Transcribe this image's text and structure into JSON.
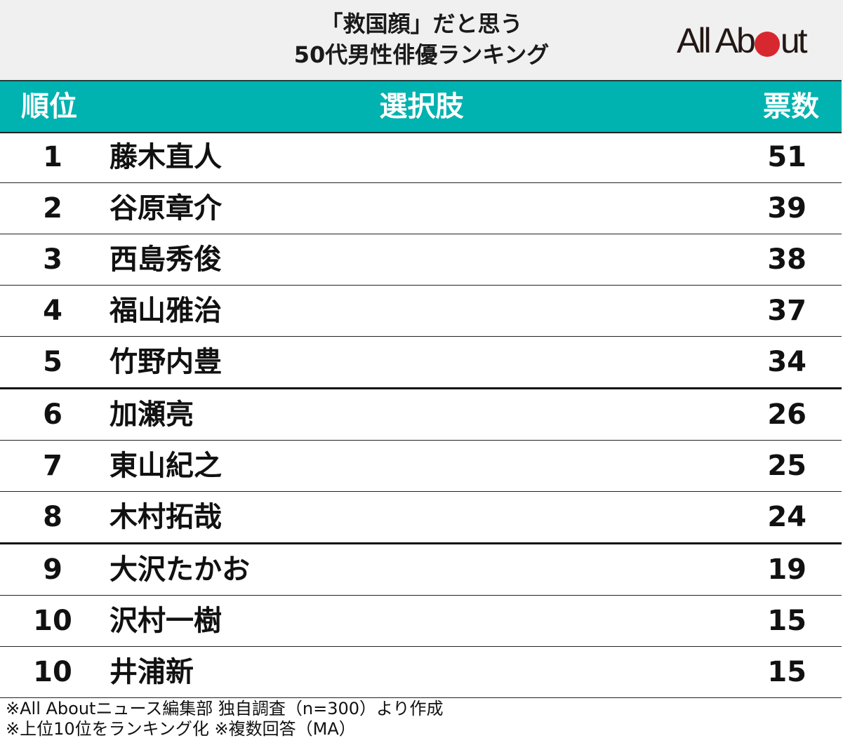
{
  "header": {
    "title_line1": "「救国顔」だと思う",
    "title_line2": "50代男性俳優ランキング",
    "logo": {
      "text_left": "All Ab",
      "text_right": "ut",
      "dot_color": "#d7282f"
    }
  },
  "table": {
    "header_color": "#00b2b0",
    "columns": {
      "rank": "順位",
      "choice": "選択肢",
      "votes": "票数"
    },
    "rows": [
      {
        "rank": "1",
        "name": "藤木直人",
        "votes": "51"
      },
      {
        "rank": "2",
        "name": "谷原章介",
        "votes": "39"
      },
      {
        "rank": "3",
        "name": "西島秀俊",
        "votes": "38"
      },
      {
        "rank": "4",
        "name": "福山雅治",
        "votes": "37"
      },
      {
        "rank": "5",
        "name": "竹野内豊",
        "votes": "34"
      },
      {
        "rank": "6",
        "name": "加瀬亮",
        "votes": "26"
      },
      {
        "rank": "7",
        "name": "東山紀之",
        "votes": "25"
      },
      {
        "rank": "8",
        "name": "木村拓哉",
        "votes": "24"
      },
      {
        "rank": "9",
        "name": "大沢たかお",
        "votes": "19"
      },
      {
        "rank": "10",
        "name": "沢村一樹",
        "votes": "15"
      },
      {
        "rank": "10",
        "name": "井浦新",
        "votes": "15"
      }
    ]
  },
  "footer": {
    "note1": "※All Aboutニュース編集部 独自調査（n=300）より作成",
    "note2": "※上位10位をランキング化 ※複数回答（MA）"
  },
  "chart_data": {
    "type": "table",
    "title": "「救国顔」だと思う 50代男性俳優ランキング",
    "columns": [
      "順位",
      "選択肢",
      "票数"
    ],
    "categories": [
      "藤木直人",
      "谷原章介",
      "西島秀俊",
      "福山雅治",
      "竹野内豊",
      "加瀬亮",
      "東山紀之",
      "木村拓哉",
      "大沢たかお",
      "沢村一樹",
      "井浦新"
    ],
    "ranks": [
      1,
      2,
      3,
      4,
      5,
      6,
      7,
      8,
      9,
      10,
      10
    ],
    "values": [
      51,
      39,
      38,
      37,
      34,
      26,
      25,
      24,
      19,
      15,
      15
    ],
    "notes": [
      "※All Aboutニュース編集部 独自調査（n=300）より作成",
      "※上位10位をランキング化 ※複数回答（MA）"
    ]
  }
}
